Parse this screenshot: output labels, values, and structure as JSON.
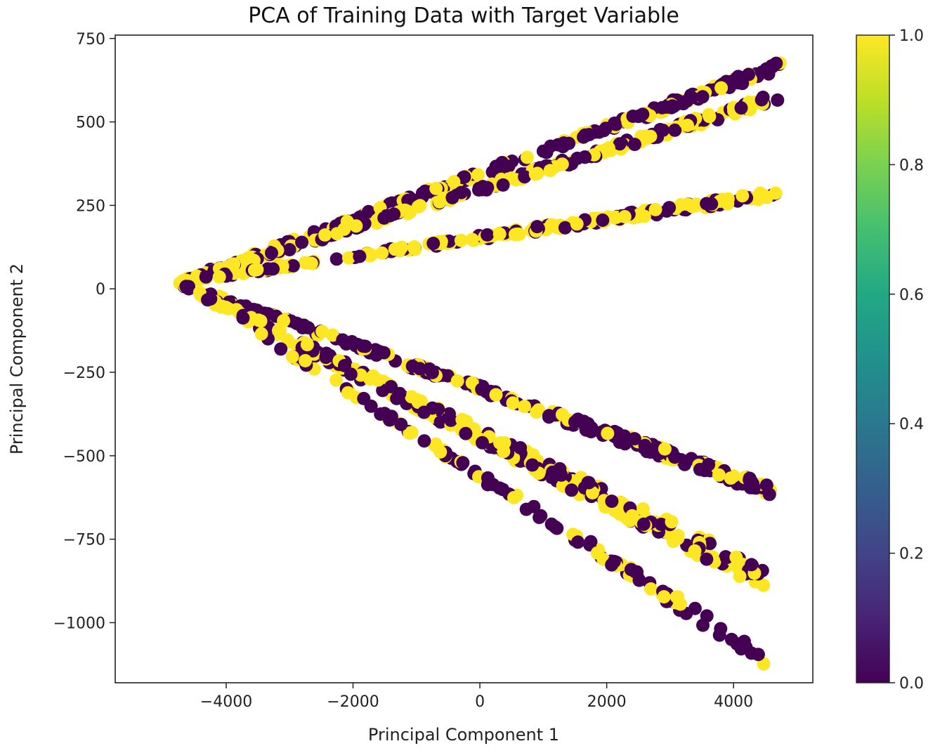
{
  "chart_data": {
    "type": "scatter",
    "title": "PCA of Training Data with Target Variable",
    "xlabel": "Principal Component 1",
    "ylabel": "Principal Component 2",
    "xlim": [
      -5750,
      5250
    ],
    "ylim": [
      -1180,
      760
    ],
    "xticks": [
      -4000,
      -2000,
      0,
      2000,
      4000
    ],
    "xtick_labels": [
      "−4000",
      "−2000",
      "0",
      "2000",
      "4000"
    ],
    "yticks": [
      750,
      500,
      250,
      0,
      -250,
      -500,
      -750,
      -1000
    ],
    "ytick_labels": [
      "750",
      "500",
      "250",
      "0",
      "−250",
      "−500",
      "−750",
      "−1000"
    ],
    "grid": false,
    "colormap": "viridis",
    "colorbar": {
      "range": [
        0.0,
        1.0
      ],
      "ticks": [
        0.0,
        0.2,
        0.4,
        0.6,
        0.8,
        1.0
      ],
      "tick_labels": [
        "0.0",
        "0.2",
        "0.4",
        "0.6",
        "0.8",
        "1.0"
      ],
      "low_color": "#440154",
      "high_color": "#fde725"
    },
    "clusters": [
      {
        "x_start": -4750,
        "x_end": 4750,
        "y_start": 20,
        "y_end": 670,
        "spread": 10,
        "points": 240,
        "yellow_fraction": 0.35
      },
      {
        "x_start": -4750,
        "x_end": 4700,
        "y_start": 20,
        "y_end": 575,
        "spread": 10,
        "points": 230,
        "yellow_fraction": 0.55
      },
      {
        "x_start": -4750,
        "x_end": 4700,
        "y_start": 20,
        "y_end": 285,
        "spread": 8,
        "points": 220,
        "yellow_fraction": 0.6
      },
      {
        "x_start": -4750,
        "x_end": 4600,
        "y_start": 15,
        "y_end": -605,
        "spread": 12,
        "points": 240,
        "yellow_fraction": 0.25
      },
      {
        "x_start": -4700,
        "x_end": 4500,
        "y_start": 10,
        "y_end": -870,
        "spread": 25,
        "points": 300,
        "yellow_fraction": 0.6
      },
      {
        "x_start": -3500,
        "x_end": 4500,
        "y_start": -130,
        "y_end": -1110,
        "spread": 15,
        "points": 120,
        "yellow_fraction": 0.3
      }
    ]
  }
}
